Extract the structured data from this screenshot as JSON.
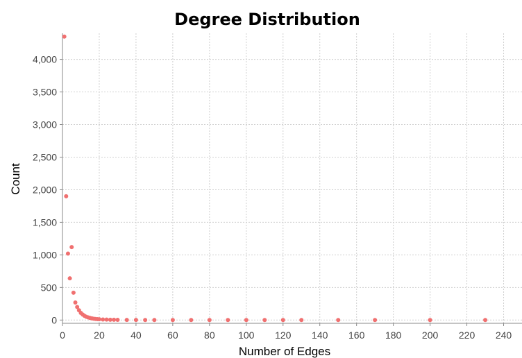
{
  "chart_data": {
    "type": "scatter",
    "title": "Degree Distribution",
    "xlabel": "Number of Edges",
    "ylabel": "Count",
    "xlim": [
      0,
      250
    ],
    "ylim": [
      -50,
      4400
    ],
    "x_ticks": [
      0,
      20,
      40,
      60,
      80,
      100,
      120,
      140,
      160,
      180,
      200,
      220,
      240
    ],
    "y_ticks": [
      0,
      500,
      1000,
      1500,
      2000,
      2500,
      3000,
      3500,
      4000
    ],
    "x_tick_labels": [
      "0",
      "20",
      "40",
      "60",
      "80",
      "100",
      "120",
      "140",
      "160",
      "180",
      "200",
      "220",
      "240"
    ],
    "y_tick_labels": [
      "0",
      "500",
      "1,000",
      "1,500",
      "2,000",
      "2,500",
      "3,000",
      "3,500",
      "4,000"
    ],
    "grid": true,
    "point_color": "#f07070",
    "series": [
      {
        "x": [
          1,
          2,
          3,
          4,
          5,
          6,
          7,
          8,
          9,
          10,
          11,
          12,
          13,
          14,
          15,
          16,
          17,
          18,
          19,
          20,
          22,
          24,
          26,
          28,
          30,
          35,
          40,
          45,
          50,
          60,
          70,
          80,
          90,
          100,
          110,
          120,
          130,
          150,
          170,
          200,
          230
        ],
        "y": [
          4350,
          1900,
          1020,
          640,
          1120,
          420,
          270,
          200,
          150,
          110,
          85,
          65,
          50,
          40,
          32,
          26,
          21,
          17,
          14,
          12,
          9,
          7,
          5,
          4,
          3,
          2,
          2,
          1,
          1,
          1,
          1,
          1,
          1,
          1,
          1,
          1,
          1,
          1,
          1,
          1,
          1
        ]
      }
    ]
  }
}
